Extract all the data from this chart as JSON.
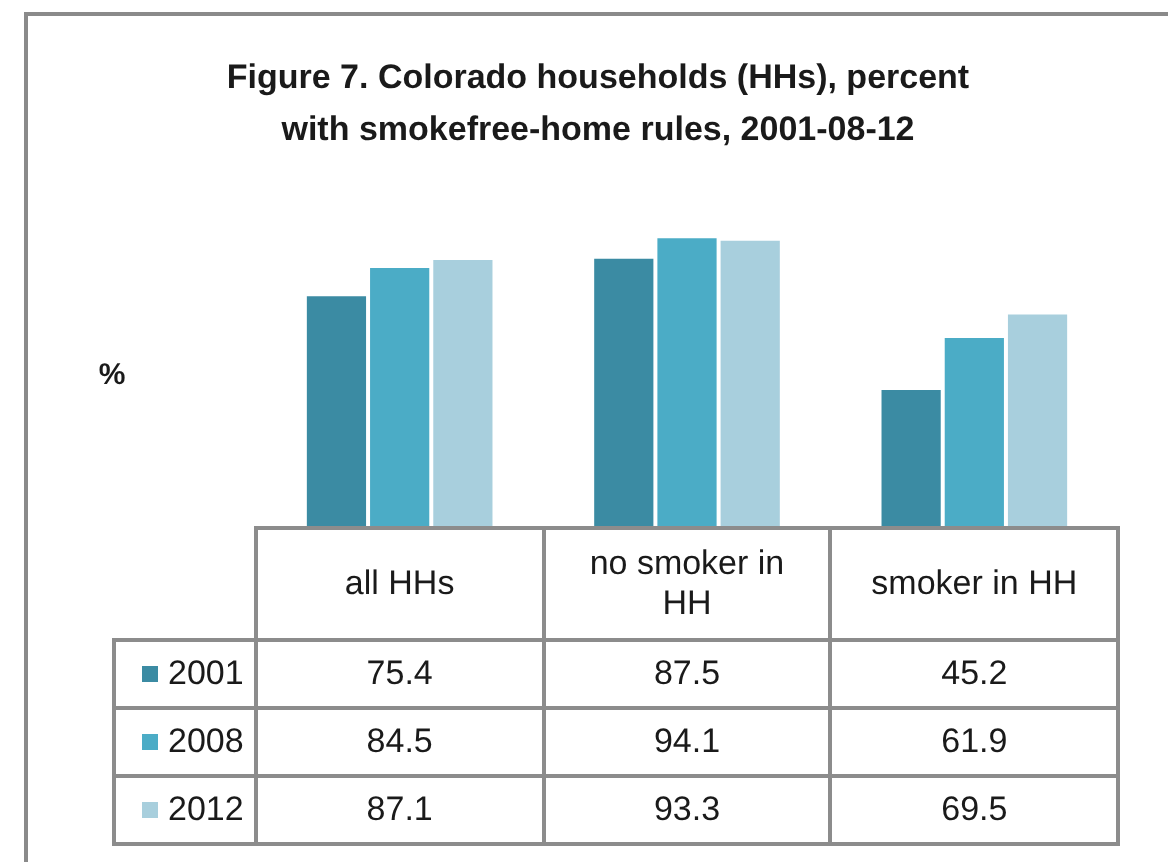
{
  "chart_data": {
    "type": "bar",
    "title": "Figure 7. Colorado households (HHs), percent with smokefree-home rules, 2001-08-12",
    "ylabel": "%",
    "categories": [
      "all HHs",
      "no smoker in HH",
      "smoker in HH"
    ],
    "series": [
      {
        "name": "2001",
        "color": "#3b8ba3",
        "values": [
          75.4,
          87.5,
          45.2
        ]
      },
      {
        "name": "2008",
        "color": "#4bacc6",
        "values": [
          84.5,
          94.1,
          61.9
        ]
      },
      {
        "name": "2012",
        "color": "#a8cfdd",
        "values": [
          87.1,
          93.3,
          69.5
        ]
      }
    ],
    "tick_labels": "x",
    "data_labels": true,
    "legend": "bottom left"
  }
}
